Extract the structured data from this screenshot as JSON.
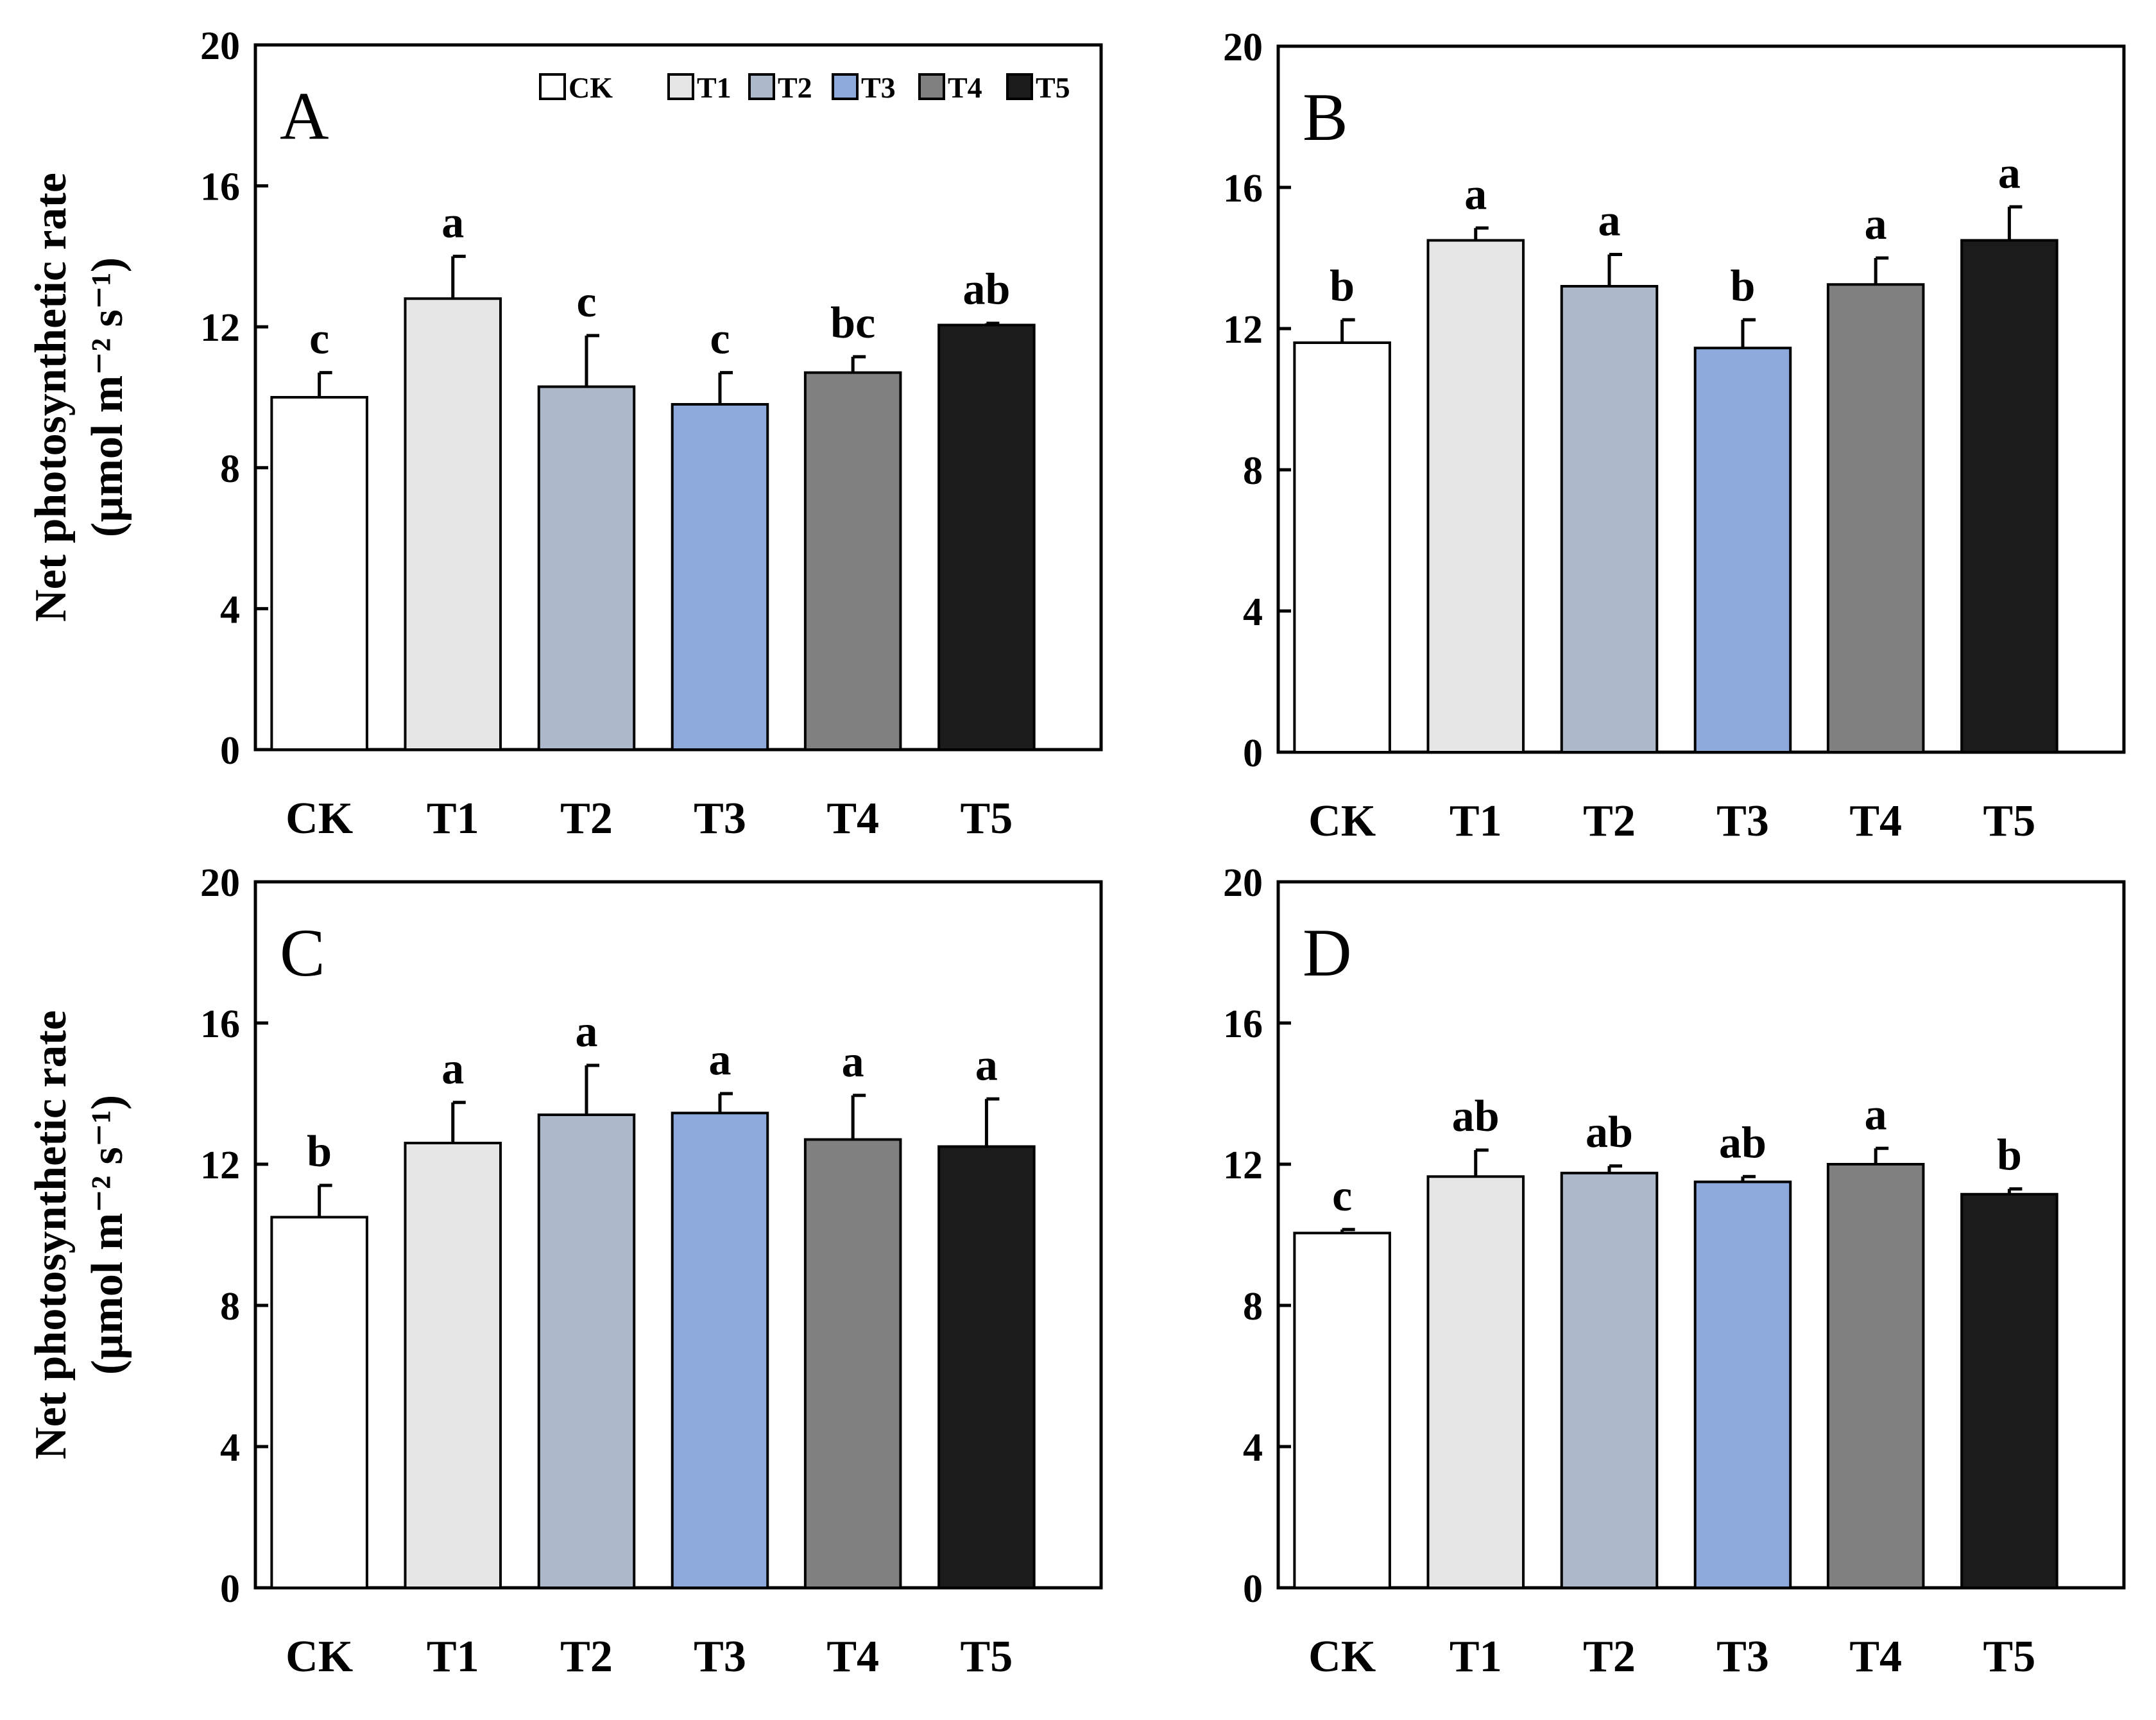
{
  "chart_data": [
    {
      "type": "bar",
      "panel_label": "A",
      "categories": [
        "CK",
        "T1",
        "T2",
        "T3",
        "T4",
        "T5"
      ],
      "values": [
        10.0,
        12.8,
        10.3,
        9.8,
        10.7,
        12.05
      ],
      "errors": [
        0.7,
        1.2,
        1.45,
        0.9,
        0.45,
        0.05
      ],
      "significance": [
        "c",
        "a",
        "c",
        "c",
        "bc",
        "ab"
      ],
      "ylabel": "Net photosynthetic rate",
      "ylabel_units": "(µmol m⁻² s⁻¹)",
      "ylim": [
        0,
        20
      ],
      "yticks": [
        "0",
        "4",
        "8",
        "12",
        "16",
        "20"
      ],
      "legend": [
        "CK",
        "T1",
        "T2",
        "T3",
        "T4",
        "T5"
      ],
      "legend_position": "top-right"
    },
    {
      "type": "bar",
      "panel_label": "B",
      "categories": [
        "CK",
        "T1",
        "T2",
        "T3",
        "T4",
        "T5"
      ],
      "values": [
        11.6,
        14.5,
        13.2,
        11.45,
        13.25,
        14.5
      ],
      "errors": [
        0.65,
        0.35,
        0.9,
        0.8,
        0.75,
        0.95
      ],
      "significance": [
        "b",
        "a",
        "a",
        "b",
        "a",
        "a"
      ],
      "ylim": [
        0,
        20
      ],
      "yticks": [
        "0",
        "4",
        "8",
        "12",
        "16",
        "20"
      ]
    },
    {
      "type": "bar",
      "panel_label": "C",
      "categories": [
        "CK",
        "T1",
        "T2",
        "T3",
        "T4",
        "T5"
      ],
      "values": [
        10.5,
        12.6,
        13.4,
        13.45,
        12.7,
        12.5
      ],
      "errors": [
        0.9,
        1.15,
        1.4,
        0.55,
        1.25,
        1.35
      ],
      "significance": [
        "b",
        "a",
        "a",
        "a",
        "a",
        "a"
      ],
      "ylabel": "Net photosynthetic rate",
      "ylabel_units": "(µmol m⁻² s⁻¹)",
      "ylim": [
        0,
        20
      ],
      "yticks": [
        "0",
        "4",
        "8",
        "12",
        "16",
        "20"
      ]
    },
    {
      "type": "bar",
      "panel_label": "D",
      "categories": [
        "CK",
        "T1",
        "T2",
        "T3",
        "T4",
        "T5"
      ],
      "values": [
        10.05,
        11.65,
        11.75,
        11.5,
        12.0,
        11.15
      ],
      "errors": [
        0.1,
        0.75,
        0.2,
        0.15,
        0.45,
        0.15
      ],
      "significance": [
        "c",
        "ab",
        "ab",
        "ab",
        "a",
        "b"
      ],
      "ylim": [
        0,
        20
      ],
      "yticks": [
        "0",
        "4",
        "8",
        "12",
        "16",
        "20"
      ]
    }
  ],
  "colors": {
    "CK": "#ffffff",
    "T1": "#e6e6e6",
    "T2": "#adb9ca",
    "T3": "#8eaadc",
    "T4": "#808080",
    "T5": "#1b1b1b"
  }
}
